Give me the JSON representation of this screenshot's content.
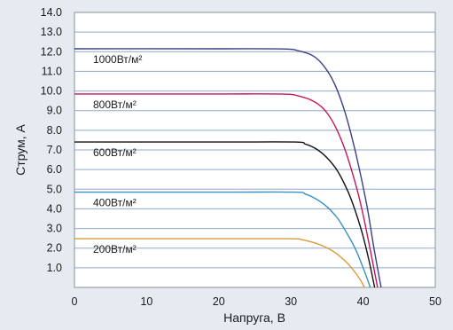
{
  "chart_data": {
    "type": "line",
    "title": "",
    "xlabel": "Напруга, В",
    "ylabel": "Струм, А",
    "xlim": [
      0,
      50
    ],
    "ylim": [
      0,
      14
    ],
    "x_ticks": [
      "0",
      "10",
      "20",
      "30",
      "40",
      "50"
    ],
    "y_ticks": [
      "1.0",
      "2.0",
      "3.0",
      "4.0",
      "5.0",
      "6.0",
      "7.0",
      "8.0",
      "9.0",
      "10.0",
      "11.0",
      "12.0",
      "13.0",
      "14.0"
    ],
    "grid": "horizontal",
    "legend": "inline labels",
    "series": [
      {
        "name": "1000Вт/м²",
        "color": "#3b3f86",
        "x": [
          0,
          20,
          29,
          31,
          33,
          34.5,
          36,
          37.5,
          39,
          40.5,
          41.5,
          42.5
        ],
        "y": [
          12.15,
          12.15,
          12.14,
          12.05,
          11.8,
          11.3,
          10.4,
          8.9,
          6.8,
          4.2,
          2.0,
          0
        ]
      },
      {
        "name": "800Вт/м²",
        "color": "#c2185b",
        "x": [
          0,
          20,
          29,
          31,
          33,
          34.5,
          36,
          37.5,
          39,
          40,
          41,
          42
        ],
        "y": [
          9.85,
          9.85,
          9.84,
          9.75,
          9.5,
          9.1,
          8.3,
          7.0,
          5.2,
          3.7,
          1.9,
          0
        ]
      },
      {
        "name": "600Вт/м²",
        "color": "#111111",
        "x": [
          0,
          20,
          30.5,
          32,
          33.5,
          35,
          36.5,
          38,
          39,
          40,
          40.8,
          41.6
        ],
        "y": [
          7.4,
          7.4,
          7.4,
          7.3,
          7.05,
          6.6,
          5.9,
          4.8,
          3.8,
          2.6,
          1.4,
          0
        ]
      },
      {
        "name": "400Вт/м²",
        "color": "#3a8fc2",
        "x": [
          0,
          20,
          30.5,
          32,
          33.5,
          35,
          36.5,
          38,
          39,
          40,
          41
        ],
        "y": [
          4.85,
          4.85,
          4.85,
          4.75,
          4.5,
          4.1,
          3.5,
          2.6,
          1.9,
          1.0,
          0
        ]
      },
      {
        "name": "200Вт/м²",
        "color": "#d99a3a",
        "x": [
          0,
          20,
          30,
          31.5,
          33,
          34.5,
          36,
          37.5,
          38.5,
          39.5,
          40.2
        ],
        "y": [
          2.48,
          2.48,
          2.48,
          2.43,
          2.3,
          2.1,
          1.8,
          1.35,
          0.95,
          0.45,
          0
        ]
      }
    ]
  }
}
